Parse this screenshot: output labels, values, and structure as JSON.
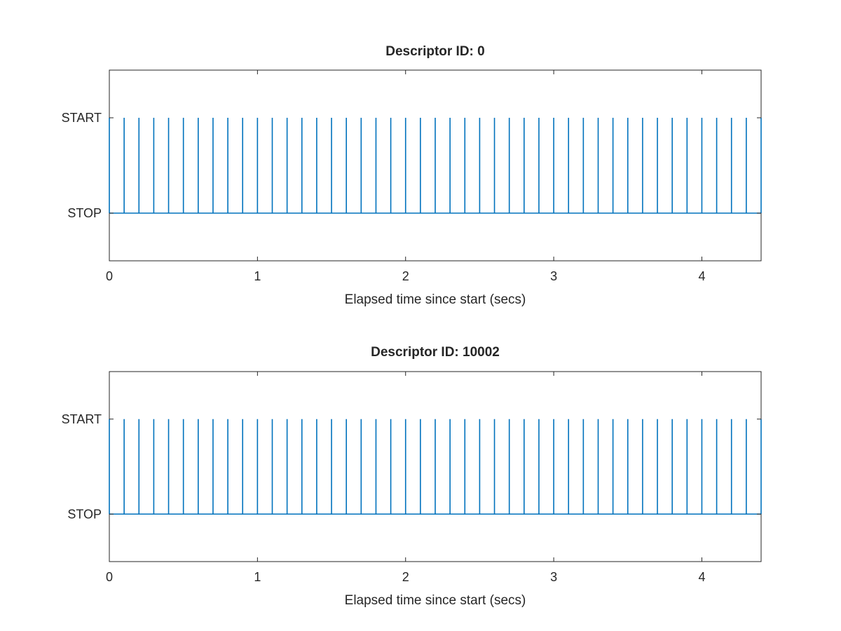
{
  "chart_data": [
    {
      "type": "line",
      "title": "Descriptor ID: 0",
      "xlabel": "Elapsed time since start (secs)",
      "ylabel": "",
      "xlim": [
        0,
        4.4
      ],
      "ylim": [
        -0.5,
        1.5
      ],
      "xticks": [
        0,
        1,
        2,
        3,
        4
      ],
      "xtick_labels": [
        "0",
        "1",
        "2",
        "3",
        "4"
      ],
      "yticks": [
        0,
        1
      ],
      "ytick_labels": [
        "STOP",
        "START"
      ],
      "grid": false,
      "legend": "none",
      "color": "#0072BD",
      "baseline": 0,
      "pulse_value": 1,
      "pulse_times": [
        0,
        0.1,
        0.2,
        0.3,
        0.4,
        0.5,
        0.6,
        0.7,
        0.8,
        0.9,
        1.0,
        1.1,
        1.2,
        1.3,
        1.4,
        1.5,
        1.6,
        1.7,
        1.8,
        1.9,
        2.0,
        2.1,
        2.2,
        2.3,
        2.4,
        2.5,
        2.6,
        2.7,
        2.8,
        2.9,
        3.0,
        3.1,
        3.2,
        3.3,
        3.4,
        3.5,
        3.6,
        3.7,
        3.8,
        3.9,
        4.0,
        4.1,
        4.2,
        4.3,
        4.4
      ]
    },
    {
      "type": "line",
      "title": "Descriptor ID: 10002",
      "xlabel": "Elapsed time since start (secs)",
      "ylabel": "",
      "xlim": [
        0,
        4.4
      ],
      "ylim": [
        -0.5,
        1.5
      ],
      "xticks": [
        0,
        1,
        2,
        3,
        4
      ],
      "xtick_labels": [
        "0",
        "1",
        "2",
        "3",
        "4"
      ],
      "yticks": [
        0,
        1
      ],
      "ytick_labels": [
        "STOP",
        "START"
      ],
      "grid": false,
      "legend": "none",
      "color": "#0072BD",
      "baseline": 0,
      "pulse_value": 1,
      "pulse_times": [
        0,
        0.1,
        0.2,
        0.3,
        0.4,
        0.5,
        0.6,
        0.7,
        0.8,
        0.9,
        1.0,
        1.1,
        1.2,
        1.3,
        1.4,
        1.5,
        1.6,
        1.7,
        1.8,
        1.9,
        2.0,
        2.1,
        2.2,
        2.3,
        2.4,
        2.5,
        2.6,
        2.7,
        2.8,
        2.9,
        3.0,
        3.1,
        3.2,
        3.3,
        3.4,
        3.5,
        3.6,
        3.7,
        3.8,
        3.9,
        4.0,
        4.1,
        4.2,
        4.3,
        4.4
      ]
    }
  ]
}
